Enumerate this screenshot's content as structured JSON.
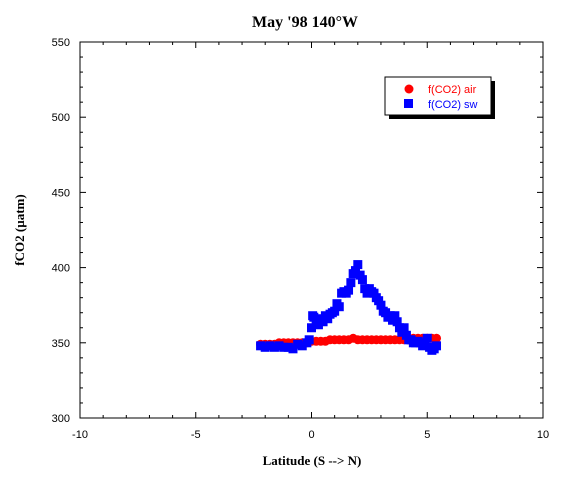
{
  "chart_data": {
    "type": "scatter",
    "title": "May '98 140°W",
    "xlabel": "Latitude (S --> N)",
    "ylabel": "fCO2 (µatm)",
    "xlim": [
      -10,
      10
    ],
    "ylim": [
      300,
      550
    ],
    "xticks": [
      -10,
      -5,
      0,
      5,
      10
    ],
    "yticks": [
      300,
      350,
      400,
      450,
      500,
      550
    ],
    "grid": false,
    "legend_position": "top-right",
    "series": [
      {
        "name": "f(CO2) air",
        "marker": "circle",
        "color": "#ff0000",
        "x": [
          -2.2,
          -2.0,
          -1.8,
          -1.6,
          -1.4,
          -1.2,
          -1.0,
          -0.8,
          -0.6,
          -0.4,
          -0.2,
          0.0,
          0.2,
          0.4,
          0.6,
          0.8,
          1.0,
          1.2,
          1.4,
          1.6,
          1.8,
          2.0,
          2.2,
          2.4,
          2.6,
          2.8,
          3.0,
          3.2,
          3.4,
          3.6,
          3.8,
          4.0,
          4.2,
          4.4,
          4.6,
          4.8,
          5.0,
          5.2,
          5.4
        ],
        "y": [
          349,
          349,
          349,
          349,
          350,
          350,
          350,
          350,
          350,
          350,
          350,
          351,
          351,
          351,
          351,
          352,
          352,
          352,
          352,
          352,
          353,
          352,
          352,
          352,
          352,
          352,
          352,
          352,
          352,
          352,
          352,
          352,
          352,
          353,
          353,
          353,
          353,
          353,
          353
        ]
      },
      {
        "name": "f(CO2) sw",
        "marker": "square",
        "color": "#0000ff",
        "x": [
          -2.2,
          -2.0,
          -1.8,
          -1.6,
          -1.4,
          -1.2,
          -1.0,
          -0.8,
          -0.6,
          -0.4,
          -0.2,
          -0.1,
          0.0,
          0.05,
          0.1,
          0.2,
          0.3,
          0.4,
          0.5,
          0.6,
          0.7,
          0.8,
          0.9,
          1.0,
          1.1,
          1.2,
          1.3,
          1.4,
          1.5,
          1.6,
          1.7,
          1.8,
          1.9,
          2.0,
          2.1,
          2.2,
          2.3,
          2.4,
          2.5,
          2.6,
          2.7,
          2.8,
          2.9,
          3.0,
          3.1,
          3.2,
          3.3,
          3.4,
          3.5,
          3.6,
          3.7,
          3.8,
          3.9,
          4.0,
          4.1,
          4.2,
          4.3,
          4.4,
          4.5,
          4.6,
          4.7,
          4.8,
          4.9,
          5.0,
          5.1,
          5.2,
          5.3,
          5.4
        ],
        "y": [
          348,
          347,
          348,
          347,
          348,
          347,
          347,
          346,
          349,
          348,
          350,
          352,
          360,
          368,
          367,
          365,
          362,
          366,
          364,
          368,
          366,
          369,
          370,
          371,
          376,
          374,
          383,
          384,
          383,
          385,
          390,
          396,
          398,
          402,
          395,
          392,
          386,
          383,
          386,
          384,
          383,
          380,
          378,
          375,
          371,
          370,
          367,
          368,
          365,
          368,
          364,
          360,
          357,
          360,
          355,
          352,
          352,
          350,
          350,
          351,
          350,
          348,
          349,
          353,
          347,
          345,
          346,
          348
        ]
      }
    ]
  }
}
